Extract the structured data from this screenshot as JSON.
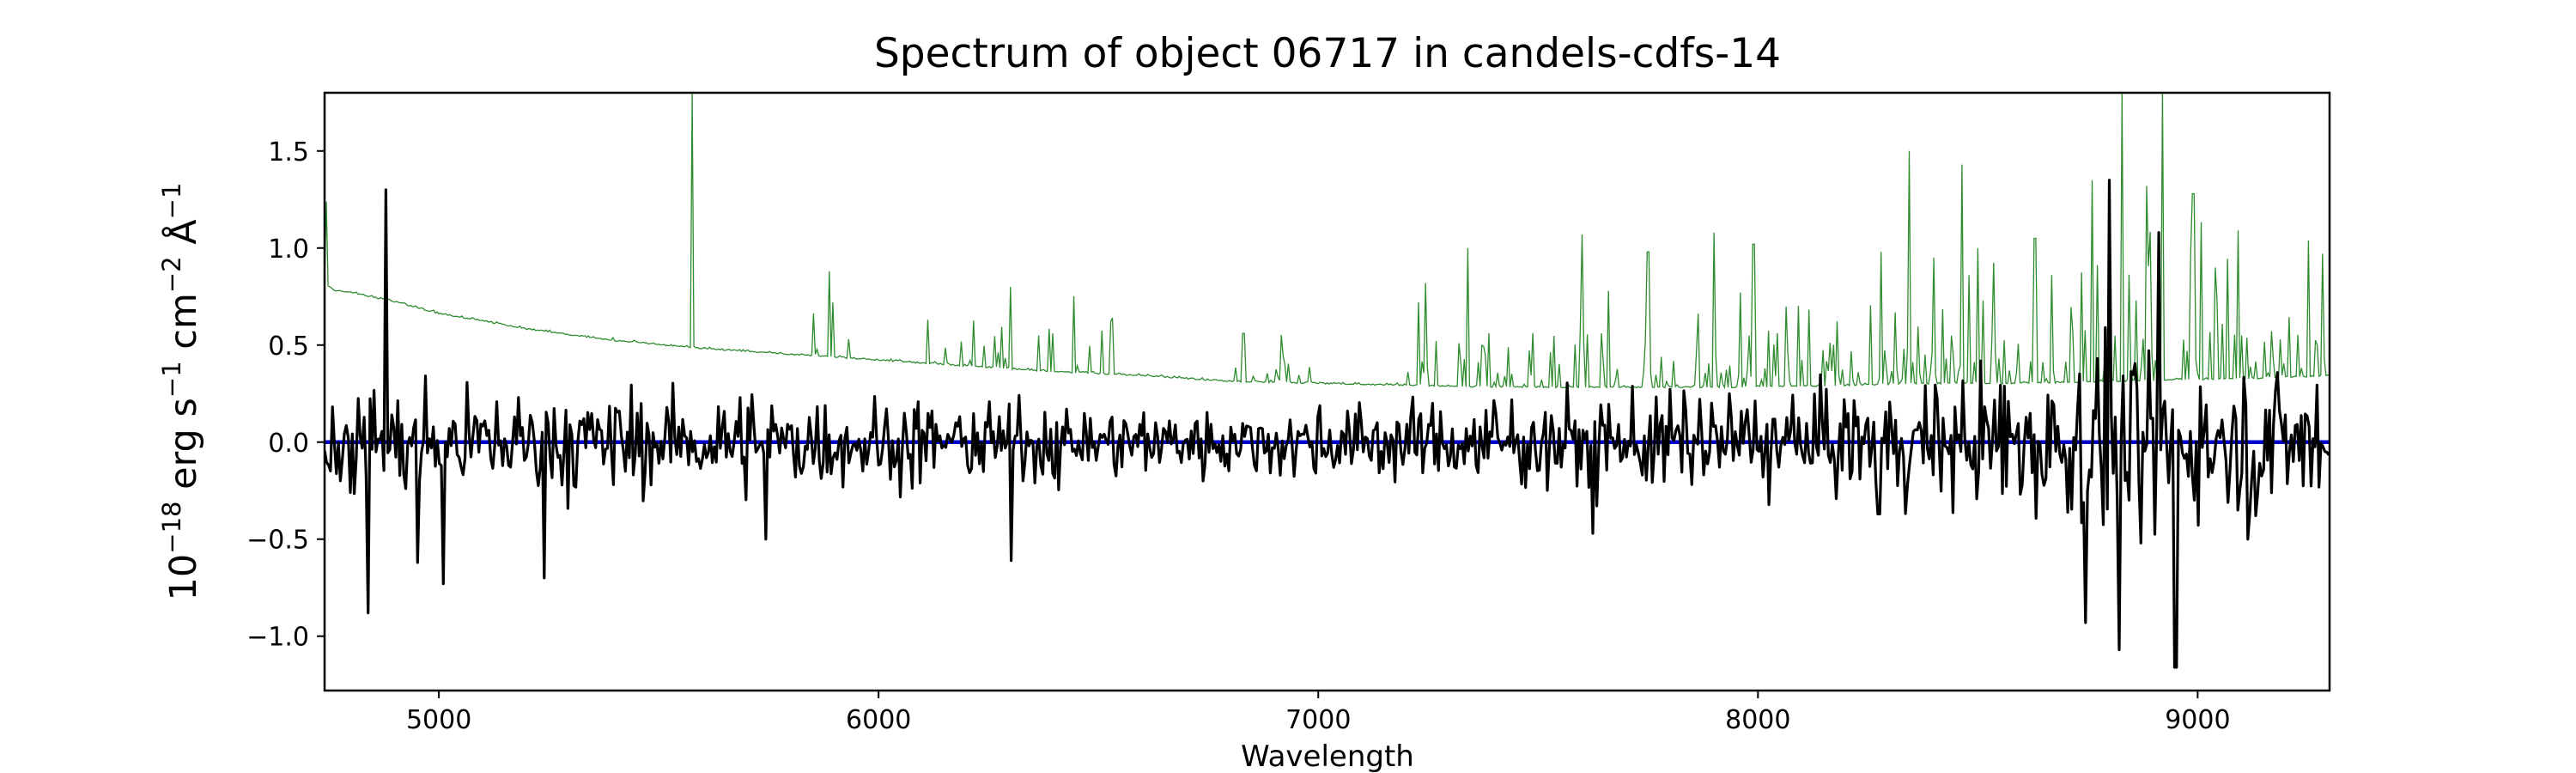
{
  "chart_data": {
    "type": "line",
    "title": "Spectrum of object 06717 in candels-cdfs-14",
    "xlabel": "Wavelength",
    "ylabel": {
      "base": "10",
      "exp1": "−18",
      "unit1": " erg s",
      "exp2": "−1",
      "unit2": " cm",
      "exp3": "−2",
      "unit3": " Å",
      "exp4": "−1"
    },
    "xlim": [
      4740,
      9300
    ],
    "ylim": [
      -1.28,
      1.8
    ],
    "xticks": [
      5000,
      6000,
      7000,
      8000,
      9000
    ],
    "xtick_labels": [
      "5000",
      "6000",
      "7000",
      "8000",
      "9000"
    ],
    "yticks": [
      -1.0,
      -0.5,
      0.0,
      0.5,
      1.0,
      1.5
    ],
    "ytick_labels": [
      "−1.0",
      "−0.5",
      "0.0",
      "0.5",
      "1.0",
      "1.5"
    ],
    "grid": false,
    "legend": "none",
    "series": [
      {
        "role": "error",
        "color": "#2e8b2e",
        "baseline": [
          [
            4740,
            0.82
          ],
          [
            4760,
            0.78
          ],
          [
            4800,
            0.77
          ],
          [
            4900,
            0.72
          ],
          [
            5000,
            0.66
          ],
          [
            5200,
            0.58
          ],
          [
            5400,
            0.52
          ],
          [
            5600,
            0.48
          ],
          [
            5800,
            0.45
          ],
          [
            6000,
            0.42
          ],
          [
            6200,
            0.39
          ],
          [
            6400,
            0.36
          ],
          [
            6600,
            0.34
          ],
          [
            6800,
            0.31
          ],
          [
            7000,
            0.3
          ],
          [
            7200,
            0.29
          ],
          [
            7400,
            0.28
          ],
          [
            7600,
            0.28
          ],
          [
            7800,
            0.28
          ],
          [
            8000,
            0.28
          ],
          [
            8200,
            0.29
          ],
          [
            8400,
            0.3
          ],
          [
            8600,
            0.3
          ],
          [
            8800,
            0.31
          ],
          [
            9000,
            0.32
          ],
          [
            9200,
            0.33
          ],
          [
            9300,
            0.34
          ]
        ],
        "features": [
          [
            4745,
            1.24
          ],
          [
            5577,
            1.8
          ],
          [
            5889,
            0.88
          ],
          [
            5895,
            0.72
          ],
          [
            6300,
            0.8
          ],
          [
            6363,
            0.55
          ],
          [
            6830,
            0.56
          ],
          [
            7245,
            0.82
          ],
          [
            7340,
            1.0
          ],
          [
            7600,
            1.07
          ],
          [
            7660,
            0.78
          ],
          [
            7750,
            0.98
          ],
          [
            7900,
            1.08
          ],
          [
            7990,
            1.02
          ],
          [
            8280,
            0.98
          ],
          [
            8345,
            1.5
          ],
          [
            8400,
            0.95
          ],
          [
            8465,
            1.43
          ],
          [
            8500,
            1.0
          ],
          [
            8630,
            1.05
          ],
          [
            8760,
            1.35
          ],
          [
            8827,
            1.8
          ],
          [
            8885,
            1.32
          ],
          [
            8920,
            1.8
          ],
          [
            8990,
            1.28
          ],
          [
            9040,
            0.9
          ],
          [
            9100,
            0.55
          ],
          [
            9270,
            0.5
          ]
        ],
        "noise": 0.05,
        "emission_density": "high in 7200-9300, moderate in 6100-6500"
      },
      {
        "role": "flux",
        "color": "#000000",
        "mean": 0.0,
        "noise_sigma_by_range": [
          [
            4740,
            0.28
          ],
          [
            5600,
            0.22
          ],
          [
            6000,
            0.2
          ],
          [
            6800,
            0.15
          ],
          [
            7200,
            0.2
          ],
          [
            8250,
            0.25
          ],
          [
            8700,
            0.4
          ],
          [
            9300,
            0.3
          ]
        ],
        "extremes": [
          [
            4880,
            1.3
          ],
          [
            4840,
            -0.88
          ],
          [
            4950,
            -0.62
          ],
          [
            5010,
            -0.73
          ],
          [
            5240,
            -0.7
          ],
          [
            5745,
            -0.5
          ],
          [
            6300,
            -0.61
          ],
          [
            7625,
            -0.47
          ],
          [
            8275,
            -0.37
          ],
          [
            8745,
            -0.93
          ],
          [
            8820,
            -1.07
          ],
          [
            8870,
            -0.52
          ],
          [
            8950,
            -1.16
          ],
          [
            8910,
            1.08
          ],
          [
            9115,
            -0.5
          ],
          [
            8800,
            1.35
          ]
        ]
      },
      {
        "role": "zero",
        "color": "#0000cc",
        "value": 0.0
      }
    ]
  }
}
